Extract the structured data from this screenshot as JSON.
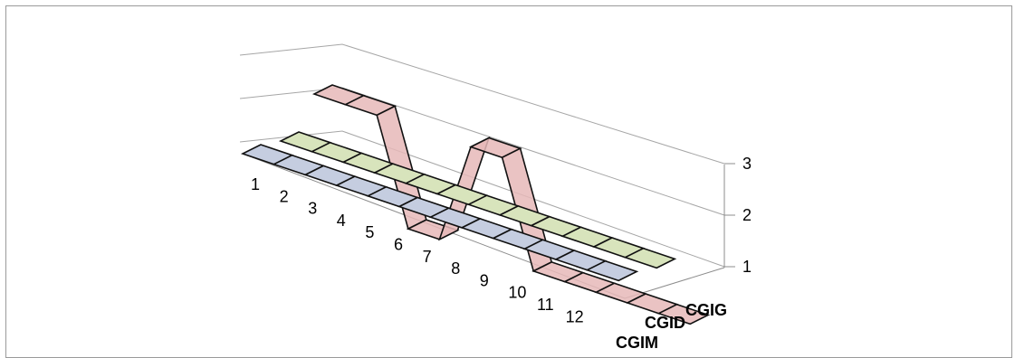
{
  "chart_data": {
    "type": "line",
    "subtype": "3d-ribbon",
    "categories": [
      "1",
      "2",
      "3",
      "4",
      "5",
      "6",
      "7",
      "8",
      "9",
      "10",
      "11",
      "12"
    ],
    "series": [
      {
        "name": "CGIM",
        "values": [
          1,
          1,
          1,
          1,
          1,
          1,
          1,
          1,
          1,
          1,
          1,
          1
        ],
        "color": "#c5cde0"
      },
      {
        "name": "CGID",
        "values": [
          1,
          1,
          1,
          1,
          1,
          1,
          1,
          1,
          1,
          1,
          1,
          1
        ],
        "color": "#d8e4bc"
      },
      {
        "name": "CGIG",
        "values": [
          3,
          3,
          3,
          1,
          1,
          3,
          3,
          1,
          1,
          1,
          1,
          1
        ],
        "color": "#e6b9b8"
      }
    ],
    "z_ticks": [
      "1",
      "2",
      "3"
    ],
    "ylim": [
      1,
      3
    ],
    "grid": true,
    "legend": "none"
  }
}
